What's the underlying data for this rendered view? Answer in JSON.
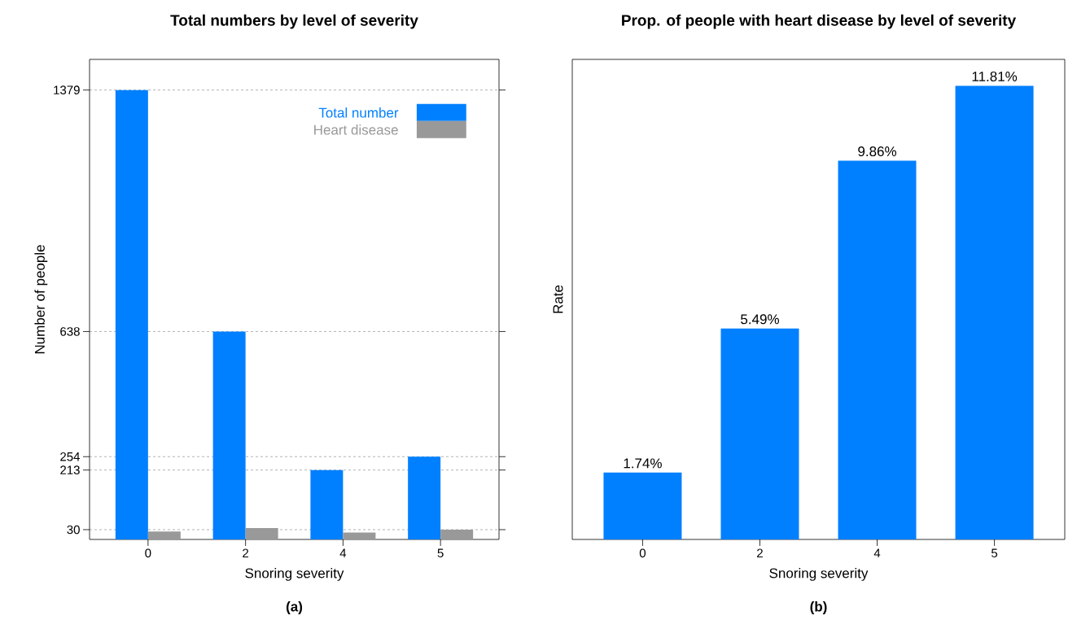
{
  "chart_data": [
    {
      "type": "bar",
      "title": "Total numbers by level of severity",
      "xlabel": "Snoring severity",
      "ylabel": "Number of people",
      "categories": [
        "0",
        "2",
        "4",
        "5"
      ],
      "series": [
        {
          "name": "Total number",
          "color": "#0080ff",
          "values": [
            1379,
            638,
            213,
            254
          ]
        },
        {
          "name": "Heart disease",
          "color": "#999999",
          "values": [
            24,
            35,
            21,
            30
          ]
        }
      ],
      "ylim": [
        0,
        1473
      ],
      "yticks": [
        30,
        213,
        254,
        638,
        1379
      ],
      "grid": "y",
      "legend": "top right",
      "annotations": [
        "(a)"
      ]
    },
    {
      "type": "bar",
      "title": "Prop. of people with heart disease by level of severity",
      "xlabel": "Snoring severity",
      "ylabel": "Rate",
      "categories": [
        "0",
        "2",
        "4",
        "5"
      ],
      "series": [
        {
          "color": "#0080ff",
          "values": [
            1.74,
            5.49,
            9.86,
            11.81
          ],
          "value_labels": [
            "1.74%",
            "5.49%",
            "9.86%",
            "11.81%"
          ]
        }
      ],
      "ylim": [
        0,
        12.5
      ],
      "tick_labels": "x",
      "annotations": [
        "(b)"
      ]
    }
  ]
}
